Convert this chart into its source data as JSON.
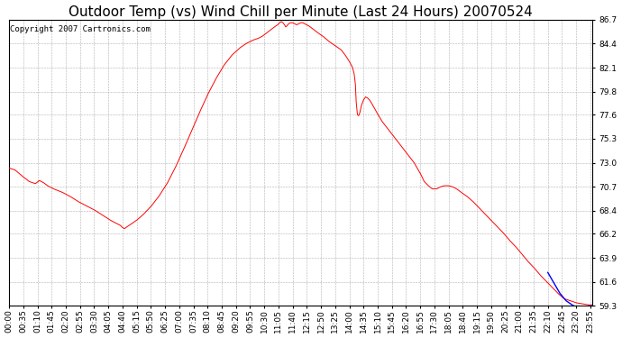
{
  "title": "Outdoor Temp (vs) Wind Chill per Minute (Last 24 Hours) 20070524",
  "copyright": "Copyright 2007 Cartronics.com",
  "ylabel_ticks": [
    59.3,
    61.6,
    63.9,
    66.2,
    68.4,
    70.7,
    73.0,
    75.3,
    77.6,
    79.8,
    82.1,
    84.4,
    86.7
  ],
  "ymin": 59.3,
  "ymax": 86.7,
  "background_color": "#ffffff",
  "plot_bg_color": "#ffffff",
  "grid_color": "#b0b0b0",
  "line_color_red": "#ff0000",
  "line_color_blue": "#0000ff",
  "title_fontsize": 11,
  "copyright_fontsize": 6.5,
  "tick_fontsize": 6.5,
  "tick_interval_minutes": 35,
  "total_minutes": 1440
}
